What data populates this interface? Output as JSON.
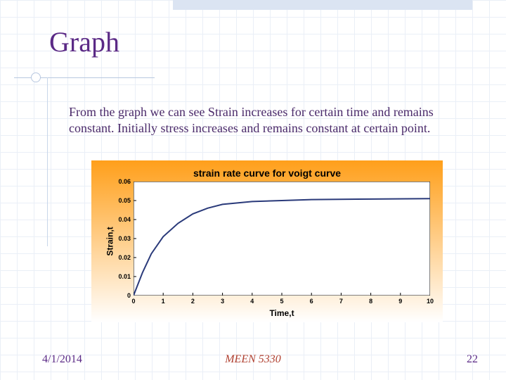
{
  "slide": {
    "title": "Graph",
    "body": "From the graph we can see Strain increases for certain time and remains constant. Initially stress increases and remains constant at certain point.",
    "footer_date": "4/1/2014",
    "footer_course": "MEEN 5330",
    "footer_page": "22",
    "title_color": "#5b2a86",
    "body_color": "#4a2a6a",
    "accent_color": "#dbe4f2",
    "grid_color": "#d6e0f0",
    "course_color": "#b04030"
  },
  "chart": {
    "type": "line",
    "title": "strain rate curve for voigt curve",
    "xlabel": "Time,t",
    "ylabel": "Strain,t",
    "xlim": [
      0,
      10
    ],
    "ylim": [
      0,
      0.06
    ],
    "xtick_step": 1,
    "ytick_step": 0.01,
    "xticks": [
      "0",
      "1",
      "2",
      "3",
      "4",
      "5",
      "6",
      "7",
      "8",
      "9",
      "10"
    ],
    "yticks": [
      "0",
      "0.01",
      "0.02",
      "0.03",
      "0.04",
      "0.05",
      "0.06"
    ],
    "line_color": "#2a3a7a",
    "line_width": 2,
    "bg_gradient_top": "#ff9f1a",
    "bg_gradient_bottom": "#ffffff",
    "plot_bg": "#ffffff",
    "tick_color": "#000000",
    "axis_color": "#000000",
    "title_fontsize": 14,
    "label_fontsize": 12,
    "tick_fontsize": 9,
    "x": [
      0,
      0.3,
      0.6,
      1.0,
      1.5,
      2.0,
      2.5,
      3.0,
      4.0,
      5.0,
      6.0,
      8.0,
      10.0
    ],
    "y": [
      0,
      0.012,
      0.022,
      0.031,
      0.038,
      0.043,
      0.046,
      0.048,
      0.0495,
      0.05,
      0.0505,
      0.0508,
      0.051
    ]
  }
}
